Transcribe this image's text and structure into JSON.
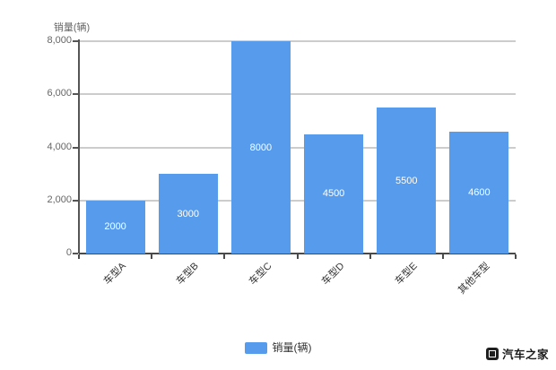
{
  "chart_data": {
    "type": "bar",
    "title": "",
    "ylabel": "销量(辆)",
    "xlabel": "",
    "categories": [
      "车型A",
      "车型B",
      "车型C",
      "车型D",
      "车型E",
      "其他车型"
    ],
    "values": [
      2000,
      3000,
      8000,
      4500,
      5500,
      4600
    ],
    "bar_labels": [
      "2000",
      "3000",
      "8000",
      "4500",
      "5500",
      "4600"
    ],
    "ylim": [
      0,
      8000
    ],
    "yticks": [
      "0",
      "2,000",
      "4,000",
      "6,000",
      "8,000"
    ],
    "grid": true,
    "x_label_rotation": 45,
    "bar_color": "#579CEC",
    "bar_label_color": "#ffffff",
    "grid_color": "#cccccc",
    "axis_color": "#555555",
    "legend_position": "bottom-center",
    "legend": {
      "label": "销量(辆)",
      "swatch_color": "#579CEC"
    }
  },
  "watermark": {
    "brand": "汽车之家"
  }
}
